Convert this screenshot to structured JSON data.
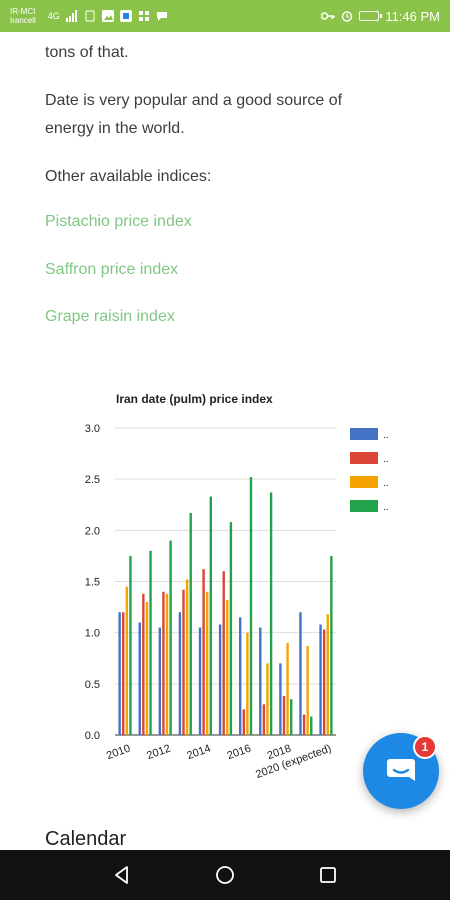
{
  "status_bar": {
    "carrier1": "IR-MCI",
    "carrier2": "Irancell",
    "network": "4G",
    "time": "11:46 PM"
  },
  "article": {
    "p1": "tons of that.",
    "p2": "Date is very popular and a good source of energy in the world.",
    "p3": "Other available indices:",
    "links": [
      "Pistachio price index",
      "Saffron price index",
      "Grape raisin index"
    ]
  },
  "fab": {
    "badge": "1",
    "icon": "chat-icon"
  },
  "section_heading": "Calendar",
  "colors": {
    "status_bar": "#8bc34a",
    "link": "#81c784",
    "fab": "#1e88e5",
    "badge": "#e53935"
  },
  "chart_data": {
    "type": "bar",
    "title": "Iran date (pulm) price index",
    "categories": [
      "2010",
      "2011",
      "2012",
      "2013",
      "2014",
      "2015",
      "2016",
      "2017",
      "2018",
      "2019",
      "2020 (expected)"
    ],
    "x_tick_labels": [
      "2010",
      "2012",
      "2014",
      "2016",
      "2018",
      "2020 (expected)"
    ],
    "ylim": [
      0,
      3.0
    ],
    "y_ticks": [
      "0.0",
      "0.5",
      "1.0",
      "1.5",
      "2.0",
      "2.5",
      "3.0"
    ],
    "grid": true,
    "legend_position": "right",
    "legend_labels": [
      "..",
      "..",
      "..",
      ".."
    ],
    "series": [
      {
        "color": "#4472c4",
        "values": [
          1.2,
          1.1,
          1.05,
          1.2,
          1.05,
          1.08,
          1.15,
          1.05,
          0.7,
          1.2,
          1.08
        ]
      },
      {
        "color": "#db4437",
        "values": [
          1.2,
          1.38,
          1.4,
          1.42,
          1.62,
          1.6,
          0.25,
          0.3,
          0.38,
          0.2,
          1.03
        ]
      },
      {
        "color": "#f4a300",
        "values": [
          1.45,
          1.3,
          1.38,
          1.52,
          1.4,
          1.32,
          1.0,
          0.7,
          0.9,
          0.87,
          1.18
        ]
      },
      {
        "color": "#22a34b",
        "values": [
          1.75,
          1.8,
          1.9,
          2.17,
          2.33,
          2.08,
          2.52,
          2.37,
          0.35,
          0.18,
          1.75
        ]
      }
    ]
  }
}
